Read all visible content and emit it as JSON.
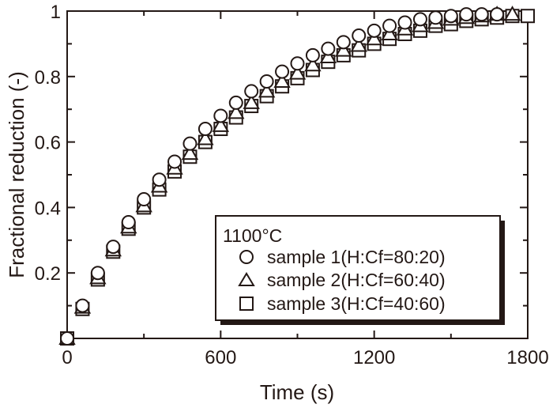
{
  "chart_data": {
    "type": "scatter",
    "title": "",
    "xlabel": "Time (s)",
    "ylabel": "Fractional reduction (-)",
    "xlim": [
      0,
      1800
    ],
    "ylim": [
      0,
      1
    ],
    "xticks": [
      0,
      600,
      1200,
      1800
    ],
    "xtick_labels": [
      "0",
      "600",
      "1200",
      "1800"
    ],
    "yticks": [
      0.2,
      0.4,
      0.6,
      0.8,
      1
    ],
    "ytick_labels": [
      "0.2",
      "0.4",
      "0.6",
      "0.8",
      "1"
    ],
    "grid": false,
    "legend": {
      "placement": "bottom-right",
      "title": "1100°C",
      "entries": [
        "sample 1(H:Cf=80:20)",
        "sample 2(H:Cf=60:40)",
        "sample 3(H:Cf=40:60)"
      ]
    },
    "series": [
      {
        "name": "sample 1(H:Cf=80:20)",
        "marker": "circle",
        "x": [
          0,
          60,
          120,
          180,
          240,
          300,
          360,
          420,
          480,
          540,
          600,
          660,
          720,
          780,
          840,
          900,
          960,
          1020,
          1080,
          1140,
          1200,
          1260,
          1320,
          1380,
          1440,
          1500,
          1560,
          1620,
          1680
        ],
        "y": [
          0,
          0.1,
          0.2,
          0.28,
          0.355,
          0.425,
          0.485,
          0.54,
          0.595,
          0.64,
          0.68,
          0.72,
          0.755,
          0.785,
          0.815,
          0.84,
          0.865,
          0.885,
          0.905,
          0.925,
          0.94,
          0.955,
          0.965,
          0.975,
          0.98,
          0.985,
          0.99,
          0.99,
          0.99
        ]
      },
      {
        "name": "sample 2(H:Cf=60:40)",
        "marker": "triangle",
        "x": [
          0,
          60,
          120,
          180,
          240,
          300,
          360,
          420,
          480,
          540,
          600,
          660,
          720,
          780,
          840,
          900,
          960,
          1020,
          1080,
          1140,
          1200,
          1260,
          1320,
          1380,
          1440,
          1500,
          1560,
          1620,
          1680,
          1740
        ],
        "y": [
          0,
          0.095,
          0.185,
          0.27,
          0.34,
          0.405,
          0.465,
          0.52,
          0.565,
          0.61,
          0.65,
          0.69,
          0.72,
          0.755,
          0.785,
          0.81,
          0.835,
          0.86,
          0.88,
          0.895,
          0.915,
          0.93,
          0.945,
          0.955,
          0.965,
          0.975,
          0.98,
          0.985,
          0.99,
          0.99
        ]
      },
      {
        "name": "sample 3(H:Cf=40:60)",
        "marker": "square",
        "x": [
          0,
          60,
          120,
          180,
          240,
          300,
          360,
          420,
          480,
          540,
          600,
          660,
          720,
          780,
          840,
          900,
          960,
          1020,
          1080,
          1140,
          1200,
          1260,
          1320,
          1380,
          1440,
          1500,
          1560,
          1620,
          1680,
          1740,
          1800
        ],
        "y": [
          0,
          0.09,
          0.18,
          0.265,
          0.335,
          0.4,
          0.455,
          0.51,
          0.555,
          0.6,
          0.64,
          0.675,
          0.71,
          0.74,
          0.77,
          0.795,
          0.82,
          0.845,
          0.865,
          0.88,
          0.9,
          0.915,
          0.93,
          0.94,
          0.955,
          0.96,
          0.97,
          0.975,
          0.98,
          0.985,
          0.985
        ]
      }
    ]
  }
}
